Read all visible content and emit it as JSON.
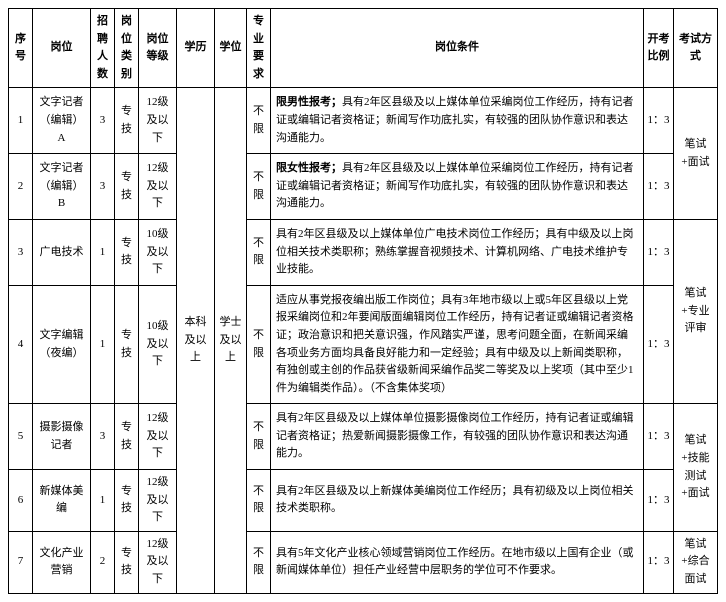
{
  "headers": {
    "seq": "序号",
    "post": "岗位",
    "num": "招聘人数",
    "cat": "岗位类别",
    "grade": "岗位等级",
    "edu": "学历",
    "deg": "学位",
    "major": "专业要求",
    "cond": "岗位条件",
    "ratio": "开考比例",
    "exam": "考试方式"
  },
  "shared": {
    "edu": "本科及以上",
    "deg": "学士及以上",
    "exam12": "笔试+面试",
    "exam34": "笔试+专业评审",
    "exam56": "笔试+技能测试+面试",
    "exam7": "笔试+综合面试"
  },
  "rows": [
    {
      "seq": "1",
      "post": "文字记者（编辑）A",
      "num": "3",
      "cat": "专技",
      "grade": "12级及以下",
      "major": "不限",
      "cond_bold": "限男性报考；",
      "cond_rest": "具有2年区县级及以上媒体单位采编岗位工作经历，持有记者证或编辑记者资格证；新闻写作功底扎实，有较强的团队协作意识和表达沟通能力。",
      "ratio": "1：3"
    },
    {
      "seq": "2",
      "post": "文字记者（编辑）B",
      "num": "3",
      "cat": "专技",
      "grade": "12级及以下",
      "major": "不限",
      "cond_bold": "限女性报考；",
      "cond_rest": "具有2年区县级及以上媒体单位采编岗位工作经历，持有记者证或编辑记者资格证；新闻写作功底扎实，有较强的团队协作意识和表达沟通能力。",
      "ratio": "1：3"
    },
    {
      "seq": "3",
      "post": "广电技术",
      "num": "1",
      "cat": "专技",
      "grade": "10级及以下",
      "major": "不限",
      "cond": "具有2年区县级及以上媒体单位广电技术岗位工作经历；具有中级及以上岗位相关技术类职称；熟练掌握音视频技术、计算机网络、广电技术维护专业技能。",
      "ratio": "1：3"
    },
    {
      "seq": "4",
      "post": "文字编辑（夜编）",
      "num": "1",
      "cat": "专技",
      "grade": "10级及以下",
      "major": "不限",
      "cond": "适应从事党报夜编出版工作岗位；具有3年地市级以上或5年区县级以上党报采编岗位和2年要闻版面编辑岗位工作经历，持有记者证或编辑记者资格证；政治意识和把关意识强，作风踏实严谨，思考问题全面，在新闻采编各项业务方面均具备良好能力和一定经验；具有中级及以上新闻类职称，有独创或主创的作品获省级新闻采编作品奖二等奖及以上奖项（其中至少1件为编辑类作品）。（不含集体奖项）",
      "ratio": "1：3"
    },
    {
      "seq": "5",
      "post": "摄影摄像记者",
      "num": "3",
      "cat": "专技",
      "grade": "12级及以下",
      "major": "不限",
      "cond": "具有2年区县级及以上媒体单位摄影摄像岗位工作经历，持有记者证或编辑记者资格证；热爱新闻摄影摄像工作，有较强的团队协作意识和表达沟通能力。",
      "ratio": "1：3"
    },
    {
      "seq": "6",
      "post": "新媒体美编",
      "num": "1",
      "cat": "专技",
      "grade": "12级及以下",
      "major": "不限",
      "cond": "具有2年区县级及以上新媒体美编岗位工作经历；具有初级及以上岗位相关技术类职称。",
      "ratio": "1：3"
    },
    {
      "seq": "7",
      "post": "文化产业 营销",
      "num": "2",
      "cat": "专技",
      "grade": "12级及以下",
      "major": "不限",
      "cond": "具有5年文化产业核心领域营销岗位工作经历。在地市级以上国有企业（或新闻媒体单位）担任产业经营中层职务的学位可不作要求。",
      "ratio": "1：3"
    }
  ]
}
